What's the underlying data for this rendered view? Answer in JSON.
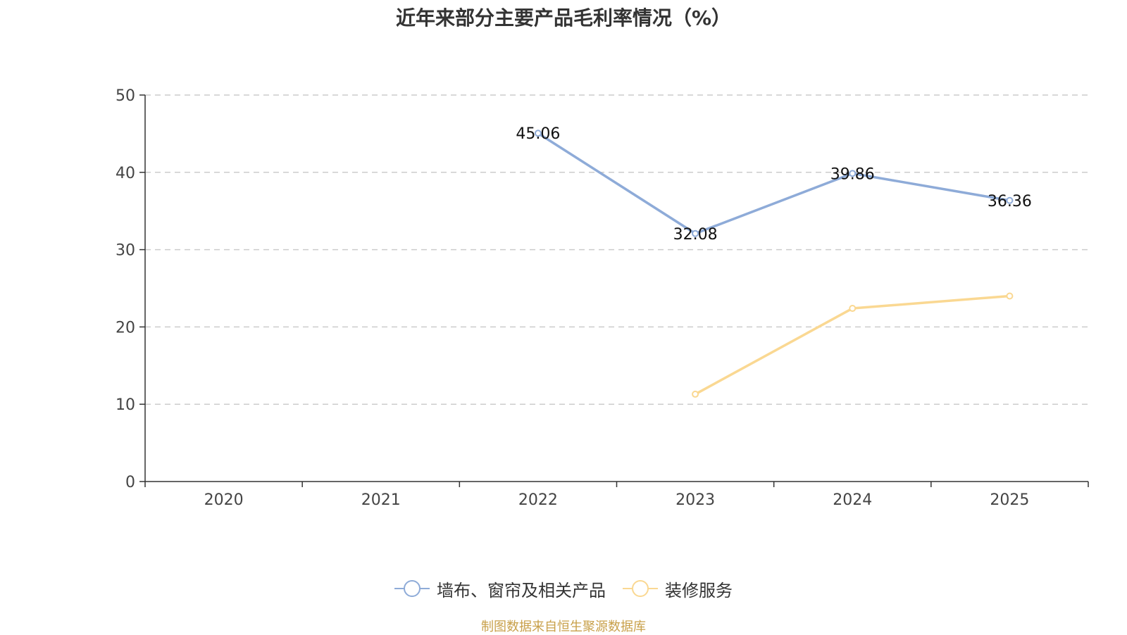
{
  "chart_data": {
    "type": "line",
    "title": "近年来部分主要产品毛利率情况（%）",
    "categories": [
      "2020",
      "2021",
      "2022",
      "2023",
      "2024",
      "2025"
    ],
    "ylim": [
      0,
      50
    ],
    "yticks": [
      0,
      10,
      20,
      30,
      40,
      50
    ],
    "grid": true,
    "legend_position": "bottom",
    "series": [
      {
        "name": "墙布、窗帘及相关产品",
        "color": "#8eabd8",
        "values": [
          null,
          null,
          45.06,
          32.08,
          39.86,
          36.36
        ],
        "labels": [
          "",
          "",
          "45.06",
          "32.08",
          "39.86",
          "36.36"
        ]
      },
      {
        "name": "装修服务",
        "color": "#fad892",
        "values": [
          null,
          null,
          null,
          11.3,
          22.4,
          24.0
        ],
        "labels": [
          "",
          "",
          "",
          "",
          "",
          ""
        ]
      }
    ]
  },
  "footer": {
    "source": "制图数据来自恒生聚源数据库"
  }
}
